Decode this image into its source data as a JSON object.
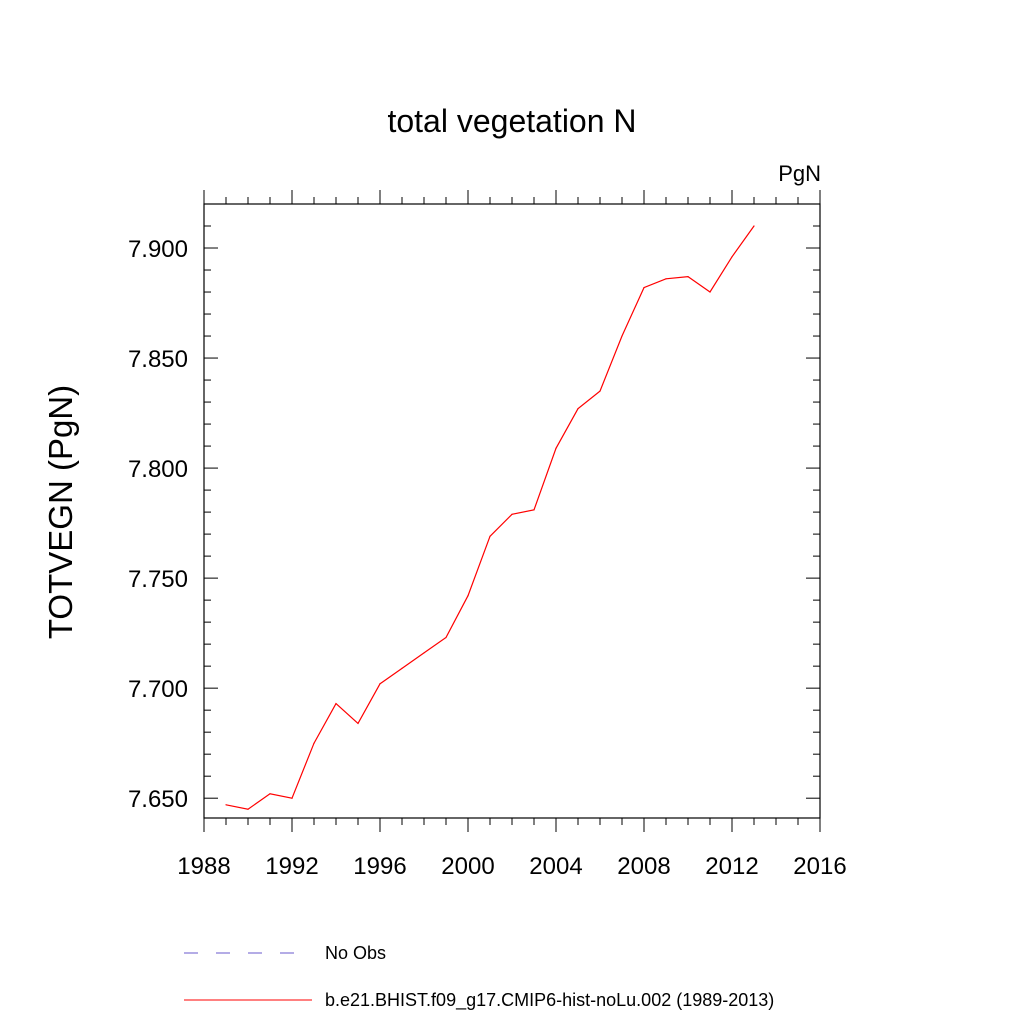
{
  "chart_data": {
    "type": "line",
    "title": "total vegetation N",
    "units_label": "PgN",
    "ylabel": "TOTVEGN  (PgN)",
    "xlabel": "",
    "xlim": [
      1988,
      2016
    ],
    "ylim": [
      7.641,
      7.92
    ],
    "x_ticks": [
      "1988",
      "1992",
      "1996",
      "2000",
      "2004",
      "2008",
      "2012",
      "2016"
    ],
    "y_ticks": [
      "7.650",
      "7.700",
      "7.750",
      "7.800",
      "7.850",
      "7.900"
    ],
    "x": [
      1989,
      1990,
      1991,
      1992,
      1993,
      1994,
      1995,
      1996,
      1997,
      1998,
      1999,
      2000,
      2001,
      2002,
      2003,
      2004,
      2005,
      2006,
      2007,
      2008,
      2009,
      2010,
      2011,
      2012,
      2013
    ],
    "series": [
      {
        "name": "b.e21.BHIST.f09_g17.CMIP6-hist-noLu.002 (1989-2013)",
        "color": "#ff0000",
        "values": [
          7.647,
          7.645,
          7.652,
          7.65,
          7.675,
          7.693,
          7.684,
          7.702,
          7.709,
          7.716,
          7.723,
          7.742,
          7.769,
          7.779,
          7.781,
          7.809,
          7.827,
          7.835,
          7.86,
          7.882,
          7.886,
          7.887,
          7.88,
          7.896,
          7.91
        ]
      }
    ],
    "legend": [
      {
        "label": "No Obs",
        "style": "dashed",
        "color": "#6a5acd"
      },
      {
        "label": "b.e21.BHIST.f09_g17.CMIP6-hist-noLu.002 (1989-2013)",
        "style": "solid",
        "color": "#ff0000"
      }
    ],
    "legend_position": "bottom",
    "grid": false
  }
}
